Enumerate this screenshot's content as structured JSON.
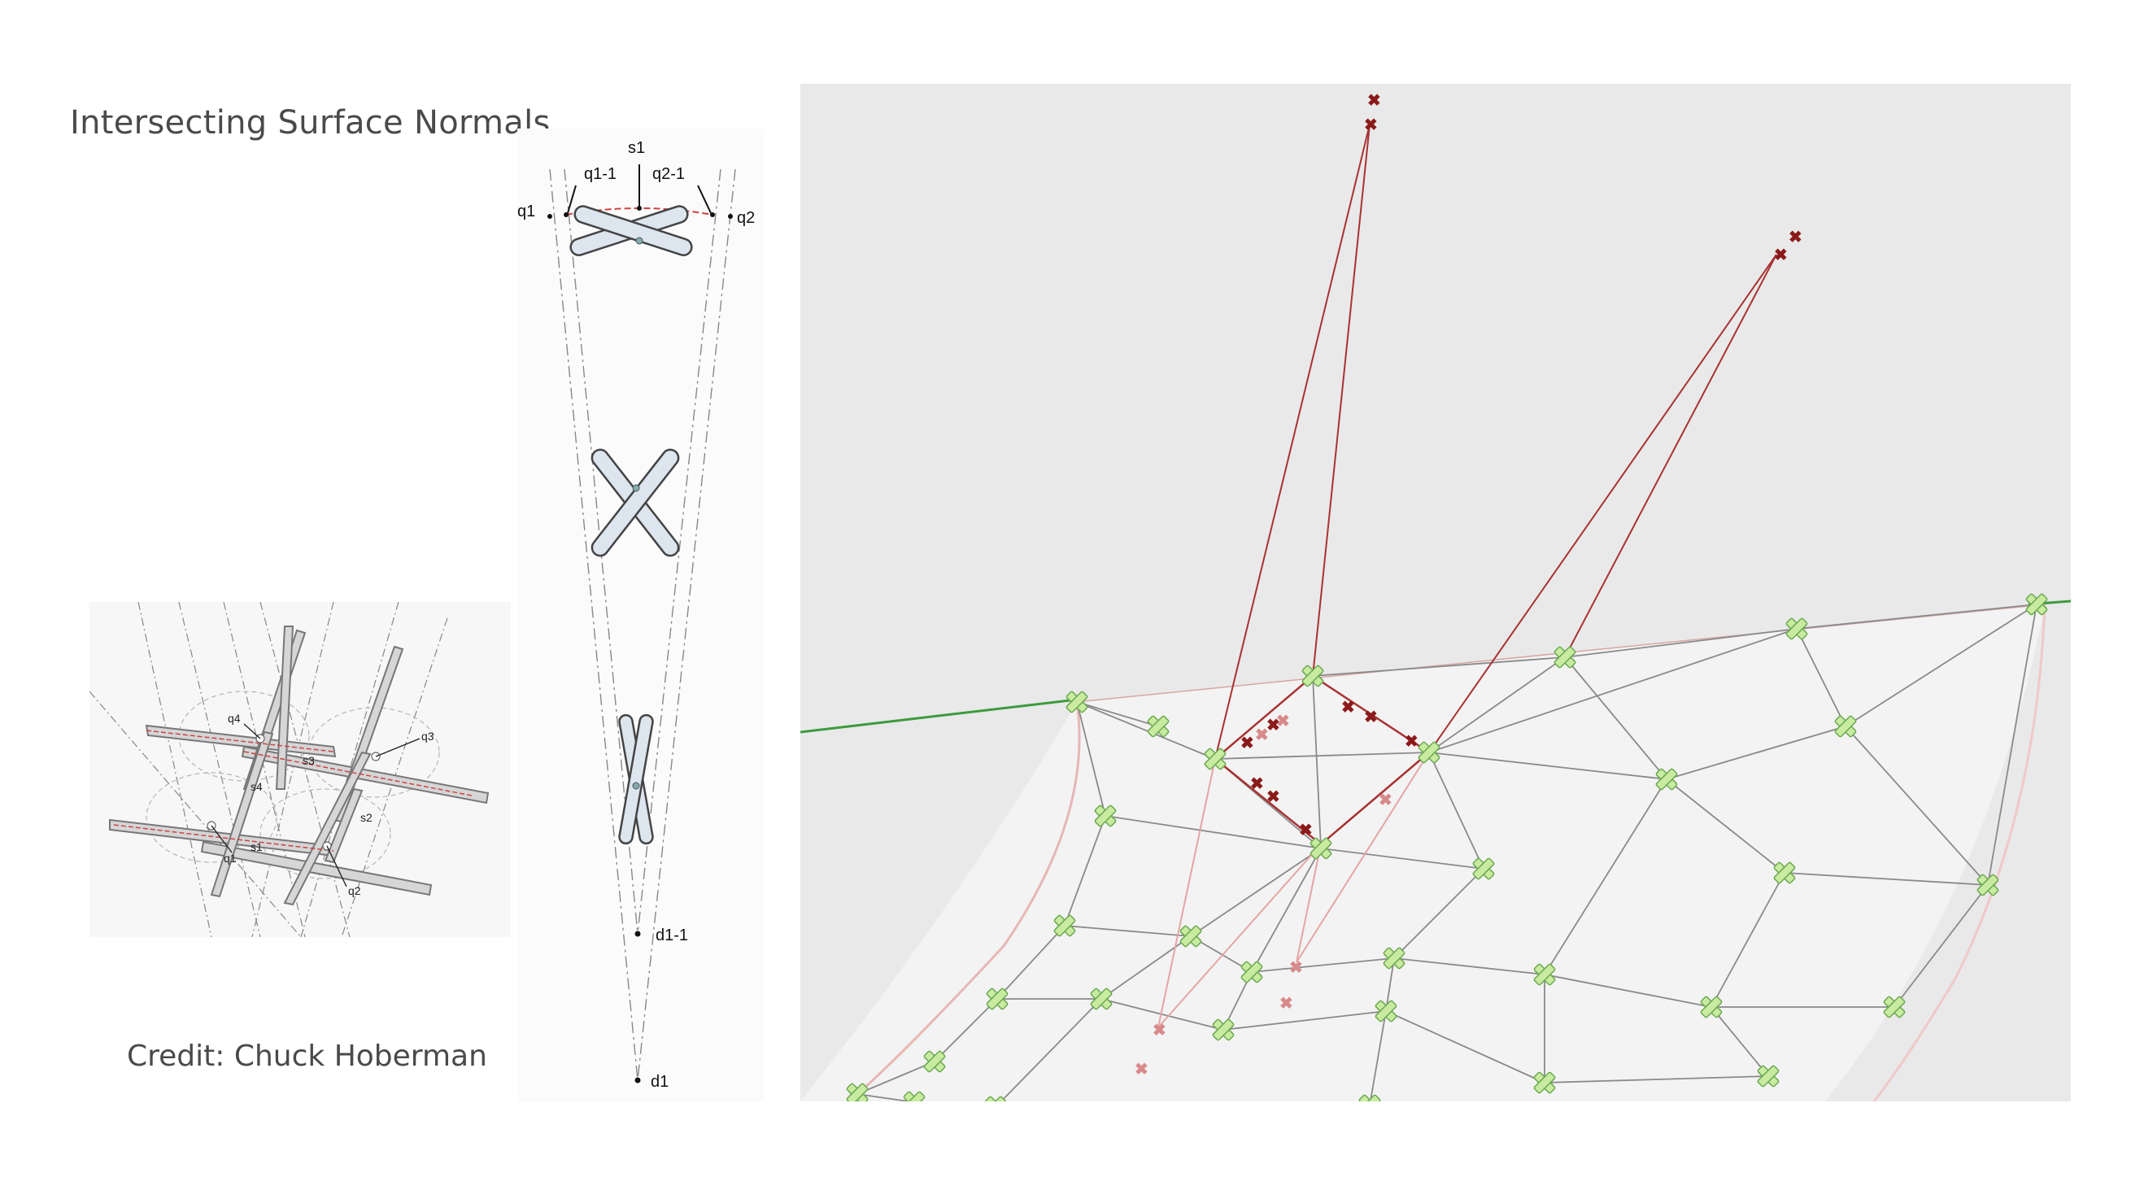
{
  "page": {
    "title": "Intersecting Surface Normals",
    "credit": "Credit: Chuck Hoberman"
  },
  "iso_diagram": {
    "labels": [
      "q4",
      "q3",
      "s3",
      "s4",
      "s2",
      "q1",
      "s1",
      "q2"
    ]
  },
  "cone_diagram": {
    "labels": {
      "s1": "s1",
      "q1_1": "q1-1",
      "q2_1": "q2-1",
      "q1": "q1",
      "q2": "q2",
      "d1_1": "d1-1",
      "d1": "d1"
    }
  },
  "viewport": {
    "colors": {
      "background": "#e9e9e9",
      "surface": "#f3f3f3",
      "mesh_line": "#8a8a8a",
      "node_fill": "#c8eba0",
      "node_stroke": "#6aa84f",
      "normal_line": "#a83232",
      "axis_green": "#3d9a3d"
    }
  }
}
